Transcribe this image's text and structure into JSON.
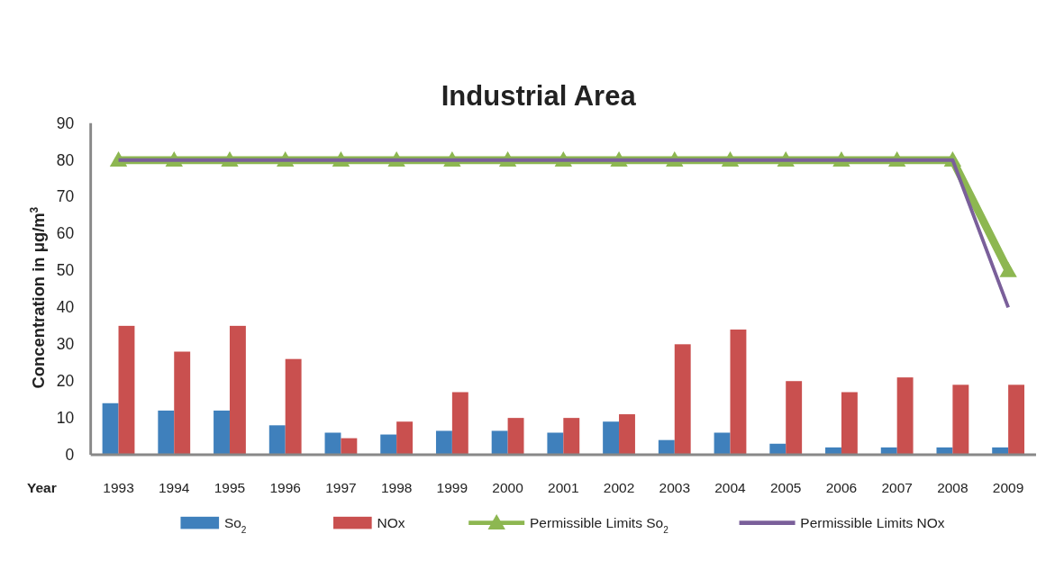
{
  "chart_data": {
    "type": "bar",
    "title": "Industrial Area",
    "xlabel": "Year",
    "ylabel": "Concentration in μg/m$^{3}$",
    "categories": [
      "1993",
      "1994",
      "1995",
      "1996",
      "1997",
      "1998",
      "1999",
      "2000",
      "2001",
      "2002",
      "2003",
      "2004",
      "2005",
      "2006",
      "2007",
      "2008",
      "2009"
    ],
    "series": [
      {
        "name": "So$_{2}$",
        "color": "#3f80bc",
        "values": [
          14,
          12,
          12,
          8,
          6,
          5.5,
          6.5,
          6.5,
          6,
          9,
          4,
          6,
          3,
          2,
          2,
          2,
          2
        ]
      },
      {
        "name": "NOx",
        "color": "#c9504f",
        "values": [
          35,
          28,
          35,
          26,
          4.5,
          9,
          17,
          10,
          10,
          11,
          30,
          34,
          20,
          17,
          21,
          19,
          19
        ]
      },
      {
        "name": "Permissible Limits So$_{2}$",
        "type": "line",
        "marker": "triangle",
        "color": "#8db751",
        "values": [
          80,
          80,
          80,
          80,
          80,
          80,
          80,
          80,
          80,
          80,
          80,
          80,
          80,
          80,
          80,
          80,
          50
        ]
      },
      {
        "name": "Permissible Limits NOx",
        "type": "line",
        "marker": "none",
        "color": "#7a5f9a",
        "values": [
          80,
          80,
          80,
          80,
          80,
          80,
          80,
          80,
          80,
          80,
          80,
          80,
          80,
          80,
          80,
          80,
          40
        ]
      }
    ],
    "ylim": [
      0,
      90
    ],
    "yticks": [
      0,
      10,
      20,
      30,
      40,
      50,
      60,
      70,
      80,
      90
    ],
    "grid": false,
    "legend": "bottom"
  }
}
